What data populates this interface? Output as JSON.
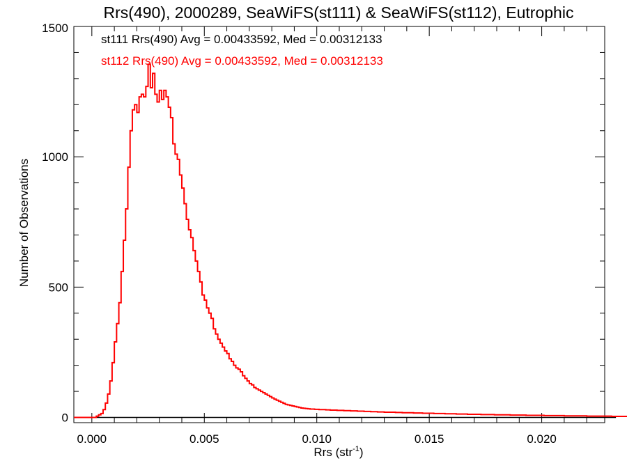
{
  "chart_data": {
    "type": "histogram",
    "title": "Rrs(490), 2000289, SeaWiFS(st111) & SeaWiFS(st112), Eutrophic",
    "xlabel_main": "Rrs (str",
    "xlabel_sup": "-1",
    "xlabel_tail": ")",
    "ylabel": "Number of Observations",
    "xlim": [
      -0.0008,
      0.0228
    ],
    "ylim": [
      -20,
      1500
    ],
    "xticks": [
      0.0,
      0.005,
      0.01,
      0.015,
      0.02
    ],
    "xtick_labels": [
      "0.000",
      "0.005",
      "0.010",
      "0.015",
      "0.020"
    ],
    "yticks": [
      0,
      500,
      1000,
      1500
    ],
    "ytick_labels": [
      "0",
      "500",
      "1000",
      "1500"
    ],
    "grid": false,
    "bin_width": 0.0001,
    "series": [
      {
        "label": "st111 Rrs(490) Avg = 0.00433592, Med = 0.00312133",
        "color": "#000000",
        "x_start": -0.0008,
        "values": [
          0,
          0,
          0,
          0,
          0,
          0,
          0,
          0,
          0,
          0,
          0,
          0,
          0,
          0,
          0,
          0,
          0,
          0,
          0,
          0,
          0,
          0,
          0,
          0,
          0,
          0,
          0,
          0,
          0,
          0,
          0,
          0,
          0,
          0,
          0,
          0,
          0,
          0,
          0,
          0,
          0,
          0,
          0,
          0,
          0,
          0,
          0,
          0,
          0,
          0,
          0,
          0,
          0,
          0,
          0,
          0,
          0,
          0,
          0,
          0,
          0,
          0,
          0,
          0,
          0,
          0,
          0,
          0,
          0,
          0,
          0,
          0,
          0,
          0,
          0,
          0,
          0,
          0,
          0,
          0,
          0,
          0,
          0,
          0,
          0,
          0,
          0,
          0,
          0,
          0,
          0,
          0,
          0,
          0,
          0,
          0,
          0,
          0,
          0,
          0,
          0,
          0,
          0,
          0,
          0,
          0,
          0,
          0,
          0,
          0,
          0,
          0,
          0,
          0,
          0,
          0,
          0,
          0,
          0,
          0,
          0,
          0,
          0,
          0,
          0,
          0,
          0,
          0,
          0,
          0,
          0,
          0,
          0,
          0,
          0,
          0,
          0,
          0,
          0,
          0,
          0,
          0,
          0,
          0,
          0,
          0,
          0,
          0,
          0,
          0,
          0,
          0,
          0,
          0,
          0,
          0,
          0,
          0,
          0,
          0,
          0,
          0,
          0,
          0,
          0,
          0,
          0,
          0,
          0,
          0,
          0,
          0,
          0,
          0,
          0,
          0,
          0,
          0,
          0,
          0,
          0,
          0,
          0,
          0,
          0,
          0,
          0,
          0,
          0,
          0,
          0,
          0,
          0,
          0,
          0,
          0,
          0,
          0,
          0,
          0,
          0,
          0,
          0,
          0,
          0,
          0,
          0,
          0,
          0,
          0,
          0,
          0,
          0,
          0,
          0,
          0,
          0,
          0,
          0,
          0,
          0,
          0,
          0,
          0,
          0,
          0,
          0,
          0,
          0,
          0,
          0,
          0,
          0,
          0,
          0,
          0,
          0,
          0,
          0,
          0,
          0
        ]
      },
      {
        "label": "st112 Rrs(490) Avg = 0.00433592, Med = 0.00312133",
        "color": "#ff0000",
        "x_start": -0.0008,
        "values": [
          0,
          0,
          0,
          0,
          0,
          0,
          0,
          0,
          0,
          0,
          5,
          10,
          15,
          30,
          55,
          90,
          140,
          210,
          290,
          360,
          440,
          560,
          680,
          800,
          960,
          1100,
          1180,
          1200,
          1170,
          1230,
          1240,
          1230,
          1270,
          1355,
          1265,
          1320,
          1240,
          1210,
          1255,
          1220,
          1255,
          1230,
          1190,
          1150,
          1050,
          1010,
          990,
          930,
          880,
          820,
          760,
          720,
          690,
          640,
          600,
          560,
          520,
          470,
          450,
          420,
          400,
          380,
          340,
          320,
          300,
          285,
          270,
          255,
          245,
          225,
          215,
          200,
          190,
          185,
          175,
          160,
          150,
          140,
          130,
          125,
          115,
          110,
          105,
          100,
          95,
          90,
          85,
          80,
          75,
          70,
          66,
          62,
          58,
          54,
          50,
          48,
          46,
          44,
          42,
          40,
          38,
          36,
          35,
          34,
          33,
          32,
          32,
          31,
          31,
          30,
          30,
          30,
          29,
          29,
          28,
          28,
          28,
          27,
          27,
          27,
          26,
          26,
          26,
          25,
          25,
          25,
          24,
          24,
          24,
          23,
          23,
          23,
          22,
          22,
          22,
          21,
          21,
          21,
          20,
          20,
          20,
          20,
          20,
          19,
          19,
          19,
          18,
          18,
          18,
          18,
          18,
          17,
          17,
          17,
          17,
          16,
          16,
          16,
          16,
          16,
          15,
          15,
          15,
          15,
          15,
          14,
          14,
          14,
          14,
          14,
          13,
          13,
          13,
          13,
          13,
          12,
          12,
          12,
          12,
          12,
          12,
          11,
          11,
          11,
          11,
          11,
          11,
          10,
          10,
          10,
          10,
          10,
          10,
          10,
          9,
          9,
          9,
          9,
          9,
          9,
          9,
          8,
          8,
          8,
          8,
          8,
          8,
          8,
          8,
          7,
          7,
          7,
          7,
          7,
          7,
          7,
          7,
          7,
          6,
          6,
          6,
          6,
          6,
          6,
          6,
          6,
          6,
          6,
          5,
          5,
          5,
          5,
          5,
          5,
          5,
          5,
          5,
          5,
          5,
          4,
          4,
          4,
          4,
          4,
          4,
          4,
          4,
          4,
          4,
          4,
          4,
          3,
          3,
          3
        ]
      }
    ]
  }
}
